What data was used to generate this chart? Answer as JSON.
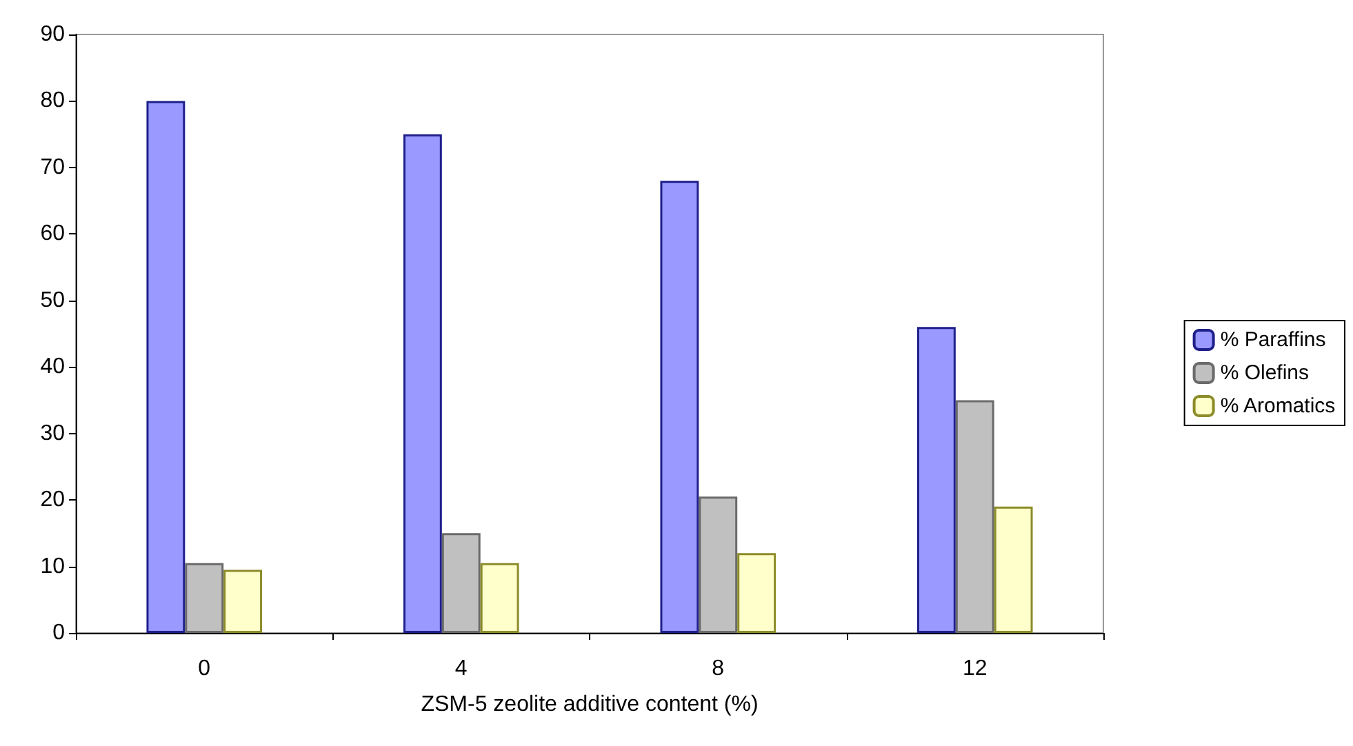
{
  "chart_data": {
    "type": "bar",
    "xlabel": "ZSM-5 zeolite additive content (%)",
    "categories": [
      "0",
      "4",
      "8",
      "12"
    ],
    "series": [
      {
        "name": "% Paraffins",
        "color": "#9999ff",
        "values": [
          80,
          75,
          68,
          46
        ]
      },
      {
        "name": "% Olefins",
        "color": "#c0c0c0",
        "values": [
          10.5,
          15,
          20.5,
          35
        ]
      },
      {
        "name": "% Aromatics",
        "color": "#ffffcc",
        "values": [
          9.5,
          10.5,
          12,
          19
        ]
      }
    ],
    "ylim": [
      0,
      90
    ],
    "yticks": [
      0,
      10,
      20,
      30,
      40,
      50,
      60,
      70,
      80,
      90
    ],
    "grid": false,
    "legend": "right"
  }
}
